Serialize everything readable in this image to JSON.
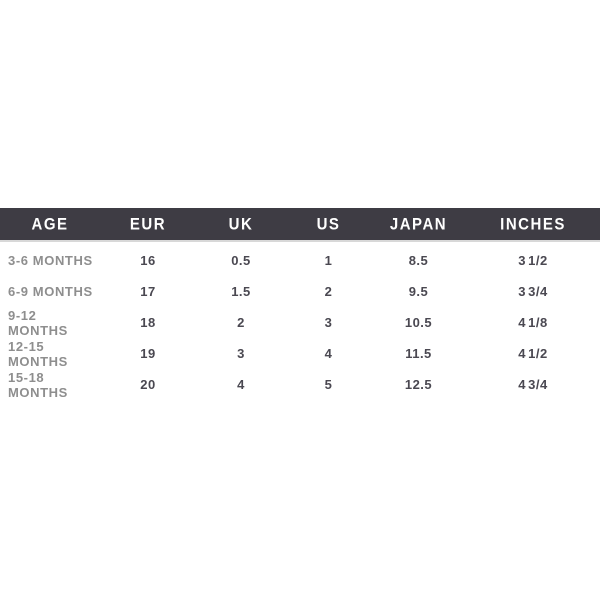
{
  "table": {
    "columns": [
      "AGE",
      "EUR",
      "UK",
      "US",
      "JAPAN",
      "INCHES"
    ],
    "rows": [
      [
        "3-6 MONTHS",
        "16",
        "0.5",
        "1",
        "8.5",
        "3 1/2"
      ],
      [
        "6-9 MONTHS",
        "17",
        "1.5",
        "2",
        "9.5",
        "3 3/4"
      ],
      [
        "9-12 MONTHS",
        "18",
        "2",
        "3",
        "10.5",
        "4 1/8"
      ],
      [
        "12-15 MONTHS",
        "19",
        "3",
        "4",
        "11.5",
        "4 1/2"
      ],
      [
        "15-18 MONTHS",
        "20",
        "4",
        "5",
        "12.5",
        "4 3/4"
      ]
    ]
  },
  "colors": {
    "header_bg": "#3e3c44",
    "header_text": "#ffffff",
    "header_underline": "#d8d8d8",
    "row_label": "#8e8e8e",
    "row_value": "#4a4851",
    "canvas_bg": "#ffffff"
  }
}
